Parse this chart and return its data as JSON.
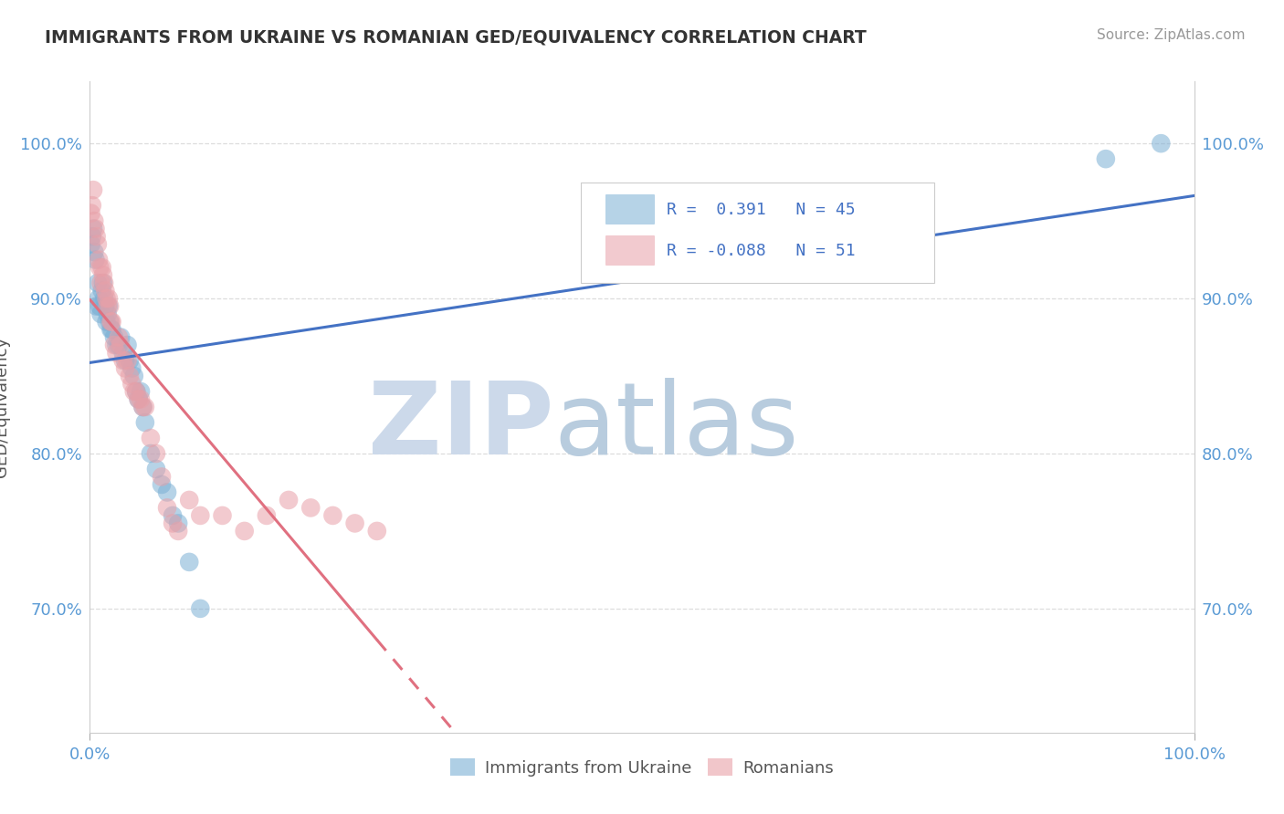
{
  "title": "IMMIGRANTS FROM UKRAINE VS ROMANIAN GED/EQUIVALENCY CORRELATION CHART",
  "source": "Source: ZipAtlas.com",
  "ylabel": "GED/Equivalency",
  "ukraine_color": "#7bafd4",
  "romania_color": "#e8a0a8",
  "ukraine_line_color": "#4472c4",
  "romania_line_color": "#e07080",
  "R_ukraine": 0.391,
  "N_ukraine": 45,
  "R_romania": -0.088,
  "N_romania": 51,
  "ukraine_x": [
    0.001,
    0.002,
    0.003,
    0.004,
    0.005,
    0.006,
    0.007,
    0.008,
    0.009,
    0.01,
    0.011,
    0.012,
    0.013,
    0.014,
    0.015,
    0.016,
    0.017,
    0.018,
    0.019,
    0.02,
    0.022,
    0.024,
    0.026,
    0.028,
    0.03,
    0.032,
    0.034,
    0.036,
    0.038,
    0.04,
    0.042,
    0.044,
    0.046,
    0.048,
    0.05,
    0.055,
    0.06,
    0.065,
    0.07,
    0.075,
    0.08,
    0.09,
    0.1,
    0.92,
    0.97
  ],
  "ukraine_y": [
    0.935,
    0.94,
    0.945,
    0.93,
    0.925,
    0.895,
    0.91,
    0.9,
    0.895,
    0.89,
    0.905,
    0.91,
    0.9,
    0.895,
    0.885,
    0.89,
    0.895,
    0.885,
    0.88,
    0.88,
    0.875,
    0.87,
    0.87,
    0.875,
    0.865,
    0.86,
    0.87,
    0.86,
    0.855,
    0.85,
    0.84,
    0.835,
    0.84,
    0.83,
    0.82,
    0.8,
    0.79,
    0.78,
    0.775,
    0.76,
    0.755,
    0.73,
    0.7,
    0.99,
    1.0
  ],
  "romania_x": [
    0.001,
    0.002,
    0.003,
    0.004,
    0.005,
    0.006,
    0.007,
    0.008,
    0.009,
    0.01,
    0.011,
    0.012,
    0.013,
    0.014,
    0.015,
    0.016,
    0.017,
    0.018,
    0.019,
    0.02,
    0.022,
    0.024,
    0.026,
    0.028,
    0.03,
    0.032,
    0.034,
    0.036,
    0.038,
    0.04,
    0.042,
    0.044,
    0.046,
    0.048,
    0.05,
    0.055,
    0.06,
    0.065,
    0.07,
    0.075,
    0.08,
    0.09,
    0.1,
    0.12,
    0.14,
    0.16,
    0.18,
    0.2,
    0.22,
    0.24,
    0.26
  ],
  "romania_y": [
    0.955,
    0.96,
    0.97,
    0.95,
    0.945,
    0.94,
    0.935,
    0.925,
    0.92,
    0.91,
    0.92,
    0.915,
    0.91,
    0.905,
    0.9,
    0.895,
    0.9,
    0.895,
    0.885,
    0.885,
    0.87,
    0.865,
    0.875,
    0.87,
    0.86,
    0.855,
    0.86,
    0.85,
    0.845,
    0.84,
    0.84,
    0.835,
    0.835,
    0.83,
    0.83,
    0.81,
    0.8,
    0.785,
    0.765,
    0.755,
    0.75,
    0.77,
    0.76,
    0.76,
    0.75,
    0.76,
    0.77,
    0.765,
    0.76,
    0.755,
    0.75
  ],
  "background_color": "#ffffff",
  "grid_color": "#dddddd",
  "tick_color": "#5b9bd5",
  "xlim": [
    0.0,
    1.0
  ],
  "ylim": [
    0.62,
    1.04
  ],
  "yticks": [
    0.7,
    0.8,
    0.9,
    1.0
  ],
  "ytick_labels": [
    "70.0%",
    "80.0%",
    "90.0%",
    "100.0%"
  ]
}
